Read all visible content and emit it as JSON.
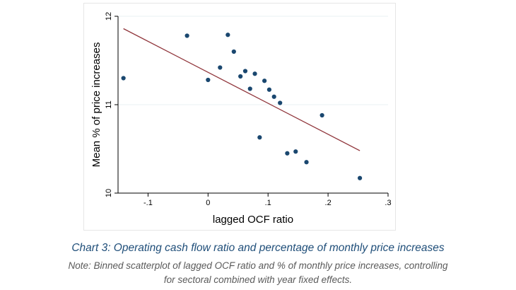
{
  "chart_data": {
    "type": "scatter",
    "title": "",
    "xlabel": "lagged OCF ratio",
    "ylabel": "Mean % of price increases",
    "xlim": [
      -0.15,
      0.3
    ],
    "ylim": [
      10,
      12
    ],
    "xticks": [
      -0.1,
      0,
      0.1,
      0.2,
      0.3
    ],
    "xtick_labels": [
      "-.1",
      "0",
      ".1",
      ".2",
      ".3"
    ],
    "yticks": [
      10,
      11,
      12
    ],
    "ytick_labels": [
      "10",
      "11",
      "12"
    ],
    "grid": "horizontal",
    "legend": "none",
    "series": [
      {
        "name": "binned means",
        "x": [
          -0.141,
          -0.035,
          0.0,
          0.02,
          0.033,
          0.043,
          0.054,
          0.062,
          0.07,
          0.078,
          0.086,
          0.094,
          0.102,
          0.11,
          0.12,
          0.132,
          0.146,
          0.164,
          0.19,
          0.253
        ],
        "y": [
          11.3,
          11.78,
          11.28,
          11.42,
          11.79,
          11.6,
          11.32,
          11.38,
          11.18,
          11.35,
          10.63,
          11.27,
          11.17,
          11.09,
          11.02,
          10.45,
          10.47,
          10.35,
          10.88,
          10.17
        ]
      }
    ],
    "fit_line": {
      "name": "linear fit",
      "x": [
        -0.141,
        0.253
      ],
      "y": [
        11.86,
        10.48
      ]
    },
    "colors": {
      "points": "#1a476f",
      "fit": "#90353b",
      "grid": "#eaf2f3",
      "axis": "#000000"
    }
  },
  "caption": {
    "title": "Chart 3: Operating cash flow ratio and percentage of monthly price increases",
    "note_line_1": "Note: Binned scatterplot of lagged OCF ratio and % of monthly price increases, controlling",
    "note_line_2": "for sectoral combined with year fixed effects."
  }
}
